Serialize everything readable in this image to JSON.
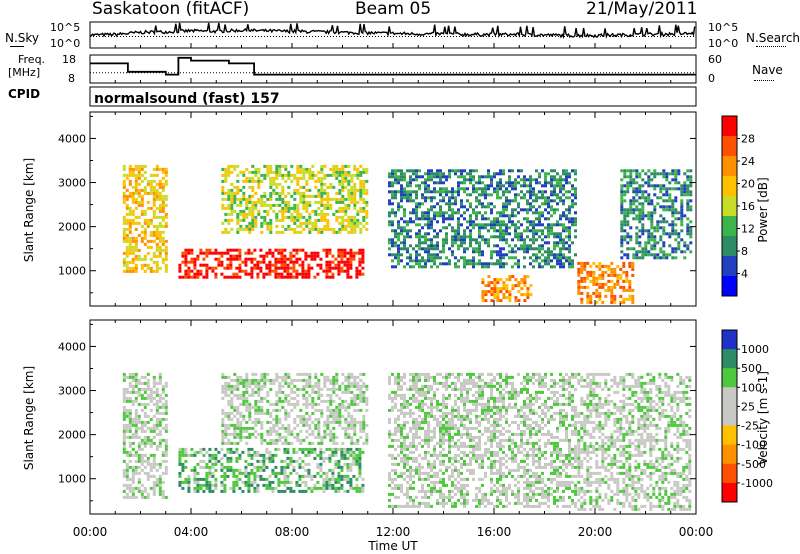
{
  "header": {
    "title": "Saskatoon (fitACF)",
    "beam": "Beam 05",
    "date": "21/May/2011"
  },
  "noise_panel": {
    "left_label": "N.Sky",
    "right_label": "N.Search",
    "ticks": [
      "10^5",
      "10^0"
    ]
  },
  "freq_panel": {
    "left_label_1": "Freq.",
    "left_label_2": "[MHz]",
    "right_label": "Nave",
    "left_ticks": [
      "18",
      "8"
    ],
    "right_ticks": [
      "60",
      "0"
    ]
  },
  "cpid": {
    "label": "CPID",
    "program": "normalsound (fast) 157"
  },
  "x_axis": {
    "title": "Time UT",
    "ticks": [
      "00:00",
      "04:00",
      "08:00",
      "12:00",
      "16:00",
      "20:00",
      "00:00"
    ]
  },
  "chart_data": [
    {
      "type": "heatmap",
      "quantity": "Power",
      "ylabel": "Slant Range [km]",
      "xlabel": "Time UT",
      "xlim": [
        0,
        24
      ],
      "ylim": [
        200,
        4600
      ],
      "yticks": [
        1000,
        2000,
        3000,
        4000
      ],
      "colorbar": {
        "label": "Power [dB]",
        "ticks": [
          "28",
          "24",
          "20",
          "16",
          "12",
          "8",
          "4"
        ],
        "colors": [
          "#ff0000",
          "#ff5000",
          "#ff9000",
          "#ffc000",
          "#c8dc28",
          "#3cb44a",
          "#2e8c64",
          "#2040c0",
          "#0000ff"
        ]
      },
      "regions": [
        {
          "t0": 1.3,
          "t1": 3.0,
          "r0": 1000,
          "r1": 3400,
          "level": 3
        },
        {
          "t0": 3.5,
          "t1": 10.8,
          "r0": 850,
          "r1": 1500,
          "level": 0
        },
        {
          "t0": 5.2,
          "t1": 11.0,
          "r0": 1900,
          "r1": 3400,
          "level": 4
        },
        {
          "t0": 11.8,
          "t1": 19.2,
          "r0": 1100,
          "r1": 3300,
          "level": 6
        },
        {
          "t0": 15.5,
          "t1": 17.5,
          "r0": 300,
          "r1": 900,
          "level": 2
        },
        {
          "t0": 19.3,
          "t1": 21.5,
          "r0": 300,
          "r1": 1200,
          "level": 2
        },
        {
          "t0": 21.0,
          "t1": 23.8,
          "r0": 1300,
          "r1": 3300,
          "level": 6
        }
      ]
    },
    {
      "type": "heatmap",
      "quantity": "Velocity",
      "ylabel": "Slant Range [km]",
      "xlabel": "Time UT",
      "xlim": [
        0,
        24
      ],
      "ylim": [
        200,
        4600
      ],
      "yticks": [
        1000,
        2000,
        3000,
        4000
      ],
      "colorbar": {
        "label": "Velocity [m s-1]",
        "ticks": [
          "1000",
          "500",
          "100",
          "25",
          "-25",
          "-100",
          "-500",
          "-1000"
        ],
        "colors": [
          "#1e32c8",
          "#2e8c64",
          "#4ec83c",
          "#c8c8c4",
          "#c8c8c4",
          "#ffc000",
          "#ff9000",
          "#ff5000",
          "#ff0000"
        ]
      },
      "regions": [
        {
          "t0": 1.3,
          "t1": 3.0,
          "r0": 600,
          "r1": 3400,
          "level": 3
        },
        {
          "t0": 3.5,
          "t1": 10.8,
          "r0": 700,
          "r1": 1700,
          "level": 2
        },
        {
          "t0": 5.2,
          "t1": 11.0,
          "r0": 1800,
          "r1": 3400,
          "level": 3
        },
        {
          "t0": 11.8,
          "t1": 19.2,
          "r0": 400,
          "r1": 3400,
          "level": 3
        },
        {
          "t0": 19.3,
          "t1": 23.8,
          "r0": 300,
          "r1": 3400,
          "level": 3
        }
      ]
    },
    {
      "type": "line",
      "quantity": "Noise (N.Sky / N.Search)",
      "xlim": [
        0,
        24
      ],
      "ylim": [
        0,
        5
      ],
      "series": [
        {
          "name": "N.Sky",
          "x": [
            0,
            1,
            2,
            3,
            4,
            5,
            6,
            7,
            8,
            9,
            10,
            11,
            12,
            13,
            14,
            15,
            16,
            17,
            18,
            19,
            20,
            21,
            22,
            23,
            24
          ],
          "values": [
            2.5,
            2.6,
            3.0,
            3.1,
            3.3,
            3.2,
            3.4,
            3.3,
            3.2,
            3.1,
            3.0,
            2.9,
            2.8,
            2.7,
            2.7,
            2.6,
            2.6,
            2.6,
            2.5,
            2.4,
            2.4,
            2.5,
            2.6,
            2.7,
            2.8
          ]
        }
      ]
    },
    {
      "type": "line",
      "quantity": "Freq / Nave",
      "xlim": [
        0,
        24
      ],
      "ylim_left": [
        8,
        18
      ],
      "ylim_right": [
        0,
        60
      ],
      "series": [
        {
          "name": "Freq.",
          "x": [
            0,
            1.5,
            1.5,
            3.0,
            3.0,
            3.5,
            3.5,
            4.0,
            4.0,
            5.5,
            5.5,
            6.5,
            6.5,
            10.0,
            10.0,
            12.0,
            12.0,
            14.0,
            14.0,
            15.0,
            15.0,
            16.0,
            16.0,
            17.5,
            17.5,
            19.3,
            19.3,
            20.3,
            20.3,
            21.0,
            21.0,
            22.0,
            22.0,
            23.0,
            23.0,
            24.0
          ],
          "values": [
            15,
            15,
            12,
            12,
            11,
            11,
            17,
            17,
            16,
            16,
            15,
            15,
            11,
            11,
            11,
            11,
            11,
            11,
            11,
            11,
            11,
            11,
            11,
            11,
            11,
            11,
            11,
            11,
            11,
            11,
            11,
            11,
            11,
            11,
            11,
            11
          ]
        },
        {
          "name": "Nave",
          "x": [
            0,
            24
          ],
          "values": [
            22,
            22
          ]
        }
      ]
    }
  ]
}
